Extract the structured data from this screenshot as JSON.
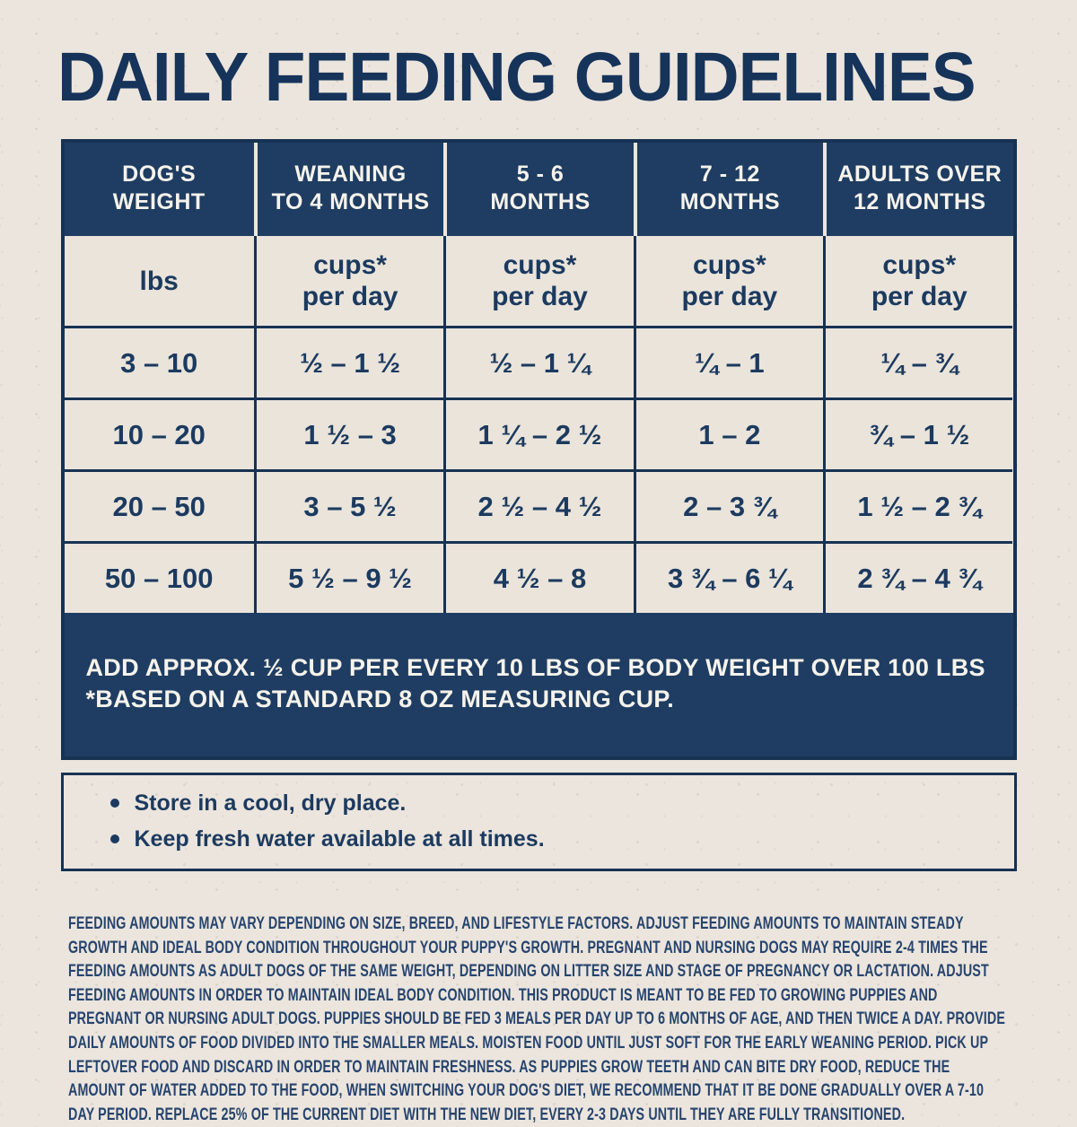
{
  "page": {
    "title": "DAILY FEEDING GUIDELINES",
    "colors": {
      "navy": "#1f3d62",
      "cream_background": "#ebe5dd",
      "text_navy": "#1c3a5f",
      "white_text": "#f6f3ec"
    }
  },
  "table": {
    "columns": [
      "DOG'S\nWEIGHT",
      "WEANING\nTO 4 MONTHS",
      "5 - 6\nMONTHS",
      "7 - 12\nMONTHS",
      "ADULTS OVER\n12 MONTHS"
    ],
    "units_row": [
      "lbs",
      "cups*\nper day",
      "cups*\nper day",
      "cups*\nper day",
      "cups*\nper day"
    ],
    "rows": [
      [
        "3 – 10",
        "½ – 1 ½",
        "½ – 1 ¼",
        "¼ – 1",
        "¼ – ¾"
      ],
      [
        "10 – 20",
        "1 ½ – 3",
        "1 ¼ – 2 ½",
        "1 – 2",
        "¾ – 1 ½"
      ],
      [
        "20 – 50",
        "3 – 5 ½",
        "2 ½ – 4 ½",
        "2 – 3 ¾",
        "1 ½ – 2 ¾"
      ],
      [
        "50 – 100",
        "5 ½ – 9 ½",
        "4 ½ – 8",
        "3 ¾ – 6 ¼",
        "2 ¾ – 4 ¾"
      ]
    ],
    "footnote": "ADD APPROX. ½ CUP PER EVERY 10 LBS OF BODY WEIGHT OVER 100 LBS\n*BASED ON A STANDARD 8 OZ MEASURING CUP."
  },
  "storage_notes": [
    "Store in a cool, dry place.",
    "Keep fresh water available at all times."
  ],
  "disclaimer": "FEEDING AMOUNTS MAY VARY DEPENDING ON SIZE, BREED, AND LIFESTYLE FACTORS. ADJUST FEEDING AMOUNTS TO MAINTAIN STEADY GROWTH AND IDEAL BODY CONDITION THROUGHOUT YOUR PUPPY'S GROWTH. PREGNANT AND NURSING DOGS MAY REQUIRE 2-4 TIMES THE FEEDING AMOUNTS AS ADULT DOGS OF THE SAME WEIGHT, DEPENDING ON LITTER SIZE AND STAGE OF PREGNANCY OR LACTATION. ADJUST FEEDING AMOUNTS IN ORDER TO MAINTAIN IDEAL BODY CONDITION. THIS PRODUCT IS MEANT TO BE FED TO GROWING PUPPIES AND PREGNANT OR NURSING ADULT DOGS. PUPPIES SHOULD BE FED 3 MEALS PER DAY UP TO 6 MONTHS OF AGE, AND THEN TWICE A DAY. PROVIDE DAILY AMOUNTS OF FOOD DIVIDED INTO THE SMALLER MEALS. MOISTEN FOOD UNTIL JUST SOFT FOR THE EARLY WEANING PERIOD. PICK UP LEFTOVER FOOD AND DISCARD IN ORDER TO MAINTAIN FRESHNESS. AS PUPPIES GROW TEETH AND CAN BITE DRY FOOD, REDUCE THE AMOUNT OF WATER ADDED TO THE FOOD, WHEN SWITCHING YOUR DOG'S DIET, WE RECOMMEND THAT IT BE DONE GRADUALLY OVER A 7-10 DAY PERIOD. REPLACE 25% OF THE CURRENT DIET WITH THE NEW DIET, EVERY 2-3 DAYS UNTIL THEY ARE FULLY TRANSITIONED."
}
